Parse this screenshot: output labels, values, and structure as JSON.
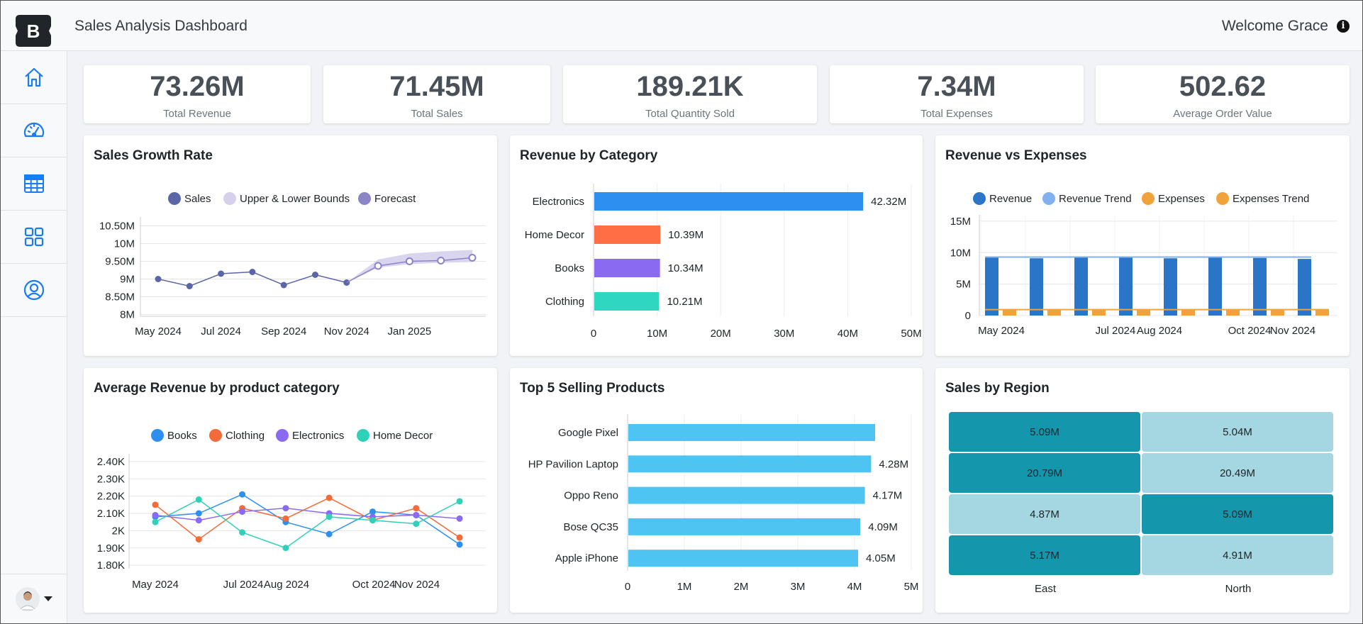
{
  "header": {
    "title": "Sales Analysis Dashboard",
    "welcome": "Welcome Grace",
    "logo_letter": "B",
    "info_icon": "i"
  },
  "sidebar": {
    "items": [
      {
        "name": "home",
        "icon": "house-icon"
      },
      {
        "name": "dashboard",
        "icon": "speedometer-icon"
      },
      {
        "name": "table",
        "icon": "table-icon"
      },
      {
        "name": "apps",
        "icon": "grid-icon"
      },
      {
        "name": "profile",
        "icon": "person-circle-icon"
      }
    ]
  },
  "kpis": [
    {
      "value": "73.26M",
      "label": "Total Revenue"
    },
    {
      "value": "71.45M",
      "label": "Total Sales"
    },
    {
      "value": "189.21K",
      "label": "Total Quantity Sold"
    },
    {
      "value": "7.34M",
      "label": "Total Expenses"
    },
    {
      "value": "502.62",
      "label": "Average Order Value"
    }
  ],
  "colors": {
    "sales": "#5a66a8",
    "bounds": "#d6d0ec",
    "forecast": "#8b84c7",
    "revenue": "#2a75c7",
    "revenue_trend": "#82b1ef",
    "expenses": "#f2a23a",
    "expenses_trend": "#f2a23a",
    "electronics_bar": "#2d8ff0",
    "home_decor_bar": "#ff6e45",
    "books_bar": "#8b6af2",
    "clothing_bar": "#2fd6c0",
    "books": "#2d8ff0",
    "clothing": "#f26b38",
    "electronics": "#8b6af2",
    "home_decor": "#2fd1b9",
    "top5": "#4ec4f3",
    "heat_dark": "#1496ad",
    "heat_light": "#a4d7e1"
  },
  "chart_data": [
    {
      "id": "sales-growth",
      "type": "line",
      "title": "Sales Growth Rate",
      "legend": [
        "Sales",
        "Upper & Lower Bounds",
        "Forecast"
      ],
      "x_ticks": [
        "May 2024",
        "Jul 2024",
        "Sep 2024",
        "Nov 2024",
        "Jan 2025"
      ],
      "y_ticks": [
        "10.50M",
        "10M",
        "9.50M",
        "9M",
        "8.50M",
        "8M"
      ],
      "y_tick_values": [
        10.5,
        10,
        9.5,
        9,
        8.5,
        8
      ],
      "ylim": [
        7.95,
        10.55
      ],
      "sales": [
        9.0,
        8.8,
        9.15,
        9.2,
        8.83,
        9.12,
        8.9
      ],
      "forecast": [
        8.9,
        9.37,
        9.5,
        9.52,
        9.6
      ],
      "upper": [
        8.9,
        9.55,
        9.72,
        9.78,
        9.82
      ],
      "lower": [
        8.9,
        9.32,
        9.42,
        9.46,
        9.48
      ]
    },
    {
      "id": "revenue-category",
      "type": "bar",
      "title": "Revenue by Category",
      "categories": [
        "Electronics",
        "Home Decor",
        "Books",
        "Clothing"
      ],
      "values": [
        42.32,
        10.39,
        10.34,
        10.21
      ],
      "labels": [
        "42.32M",
        "10.39M",
        "10.34M",
        "10.21M"
      ],
      "x_ticks": [
        "0",
        "10M",
        "20M",
        "30M",
        "40M",
        "50M"
      ],
      "xlim": [
        0,
        50
      ]
    },
    {
      "id": "revenue-expenses",
      "type": "bar",
      "title": "Revenue vs Expenses",
      "legend": [
        "Revenue",
        "Revenue Trend",
        "Expenses",
        "Expenses Trend"
      ],
      "x_ticks": [
        "May 2024",
        "Jul 2024",
        "Aug 2024",
        "Oct 2024",
        "Nov 2024"
      ],
      "y_ticks": [
        "15M",
        "10M",
        "5M",
        "0"
      ],
      "y_tick_values": [
        15,
        10,
        5,
        0
      ],
      "ylim": [
        0,
        16
      ],
      "revenue": [
        9.3,
        9.1,
        9.35,
        9.4,
        9.1,
        9.4,
        9.15,
        9.0
      ],
      "expenses": [
        1.0,
        0.95,
        0.95,
        0.95,
        0.95,
        0.95,
        0.95,
        0.9
      ],
      "revenue_trend": 9.3,
      "expenses_trend": 0.95
    },
    {
      "id": "avg-revenue",
      "type": "line",
      "title": "Average Revenue by product category",
      "legend": [
        "Books",
        "Clothing",
        "Electronics",
        "Home Decor"
      ],
      "x_ticks": [
        "May 2024",
        "Jul 2024",
        "Aug 2024",
        "Oct 2024",
        "Nov 2024"
      ],
      "y_ticks": [
        "2.40K",
        "2.30K",
        "2.20K",
        "2.10K",
        "2K",
        "1.90K",
        "1.80K"
      ],
      "y_tick_values": [
        2.4,
        2.3,
        2.2,
        2.1,
        2.0,
        1.9,
        1.8
      ],
      "ylim": [
        1.78,
        2.42
      ],
      "series": [
        {
          "name": "Books",
          "values": [
            2.08,
            2.1,
            2.21,
            2.05,
            1.98,
            2.11,
            2.09,
            1.92
          ]
        },
        {
          "name": "Clothing",
          "values": [
            2.15,
            1.95,
            2.13,
            2.07,
            2.19,
            2.06,
            2.13,
            1.96
          ]
        },
        {
          "name": "Electronics",
          "values": [
            2.09,
            2.06,
            2.11,
            2.13,
            2.1,
            2.08,
            2.09,
            2.07
          ]
        },
        {
          "name": "Home Decor",
          "values": [
            2.05,
            2.18,
            1.99,
            1.9,
            2.08,
            2.06,
            2.04,
            2.17
          ]
        }
      ]
    },
    {
      "id": "top5",
      "type": "bar",
      "title": "Top 5 Selling Products",
      "categories": [
        "Google Pixel",
        "HP Pavilion Laptop",
        "Oppo Reno",
        "Bose QC35",
        "Apple iPhone"
      ],
      "values": [
        4.35,
        4.28,
        4.17,
        4.09,
        4.05
      ],
      "labels": [
        "",
        "4.28M",
        "4.17M",
        "4.09M",
        "4.05M"
      ],
      "x_ticks": [
        "0",
        "1M",
        "2M",
        "3M",
        "4M",
        "5M"
      ],
      "xlim": [
        0,
        5
      ]
    },
    {
      "id": "sales-region",
      "type": "heatmap",
      "title": "Sales by Region",
      "columns": [
        "East",
        "North"
      ],
      "cells": [
        [
          "5.09M",
          "5.04M"
        ],
        [
          "20.79M",
          "20.49M"
        ],
        [
          "4.87M",
          "5.09M"
        ],
        [
          "5.17M",
          "4.91M"
        ]
      ],
      "values": [
        [
          5.09,
          5.04
        ],
        [
          20.79,
          20.49
        ],
        [
          4.87,
          5.09
        ],
        [
          5.17,
          4.91
        ]
      ]
    }
  ]
}
